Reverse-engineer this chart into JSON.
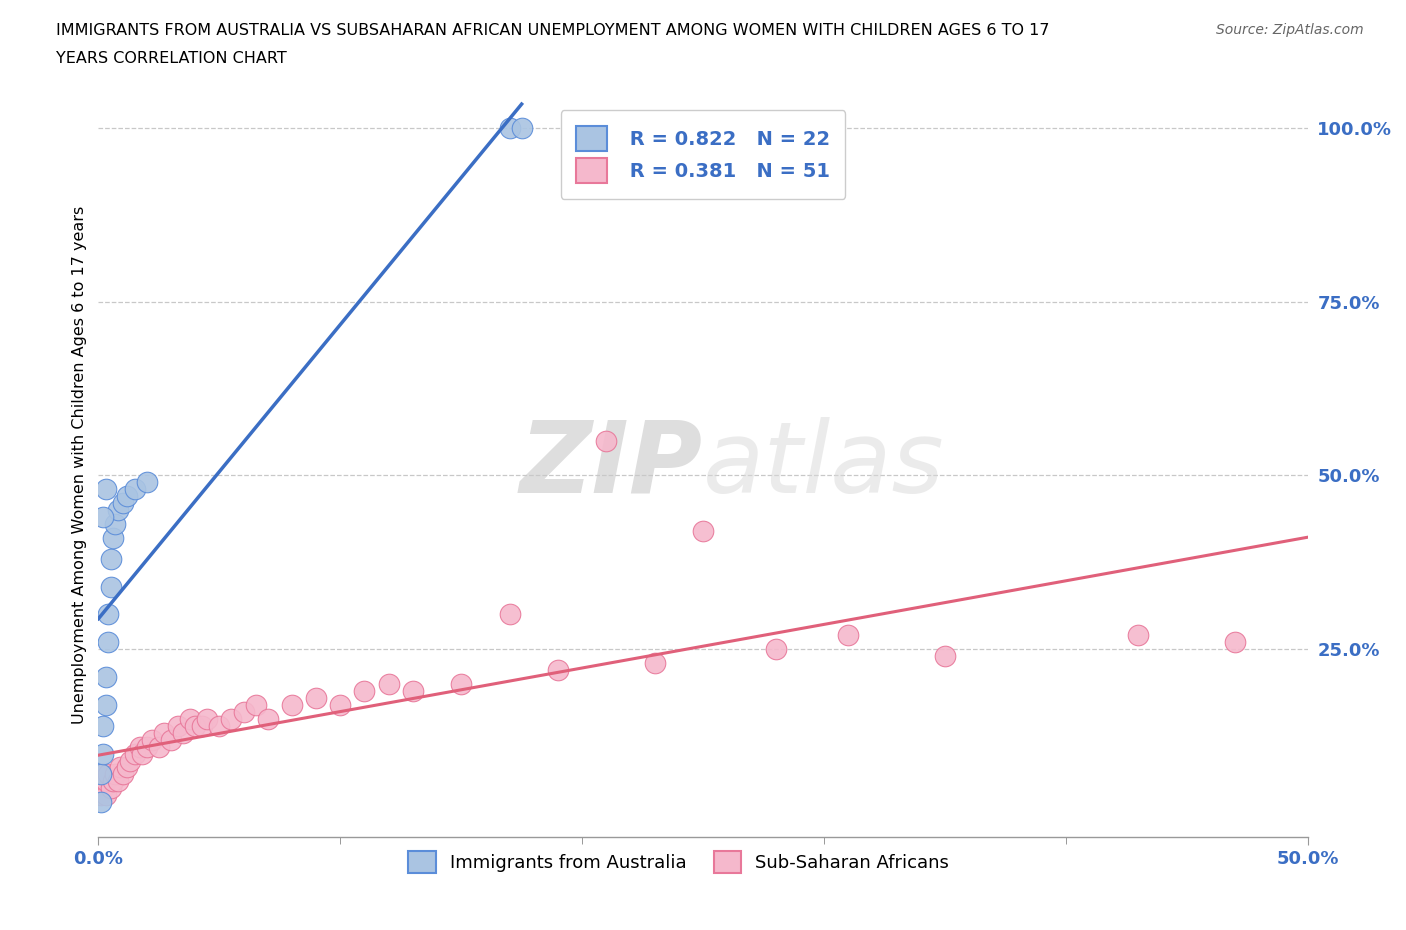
{
  "title_line1": "IMMIGRANTS FROM AUSTRALIA VS SUBSAHARAN AFRICAN UNEMPLOYMENT AMONG WOMEN WITH CHILDREN AGES 6 TO 17",
  "title_line2": "YEARS CORRELATION CHART",
  "source": "Source: ZipAtlas.com",
  "ylabel": "Unemployment Among Women with Children Ages 6 to 17 years",
  "xlim": [
    0,
    0.5
  ],
  "ylim": [
    -0.02,
    1.05
  ],
  "yticks": [
    0.25,
    0.5,
    0.75,
    1.0
  ],
  "ytick_labels": [
    "25.0%",
    "50.0%",
    "75.0%",
    "100.0%"
  ],
  "australia_color": "#aac4e2",
  "australia_edge_color": "#5b8dd9",
  "australia_line_color": "#3b6ec4",
  "subsaharan_color": "#f5b8cc",
  "subsaharan_edge_color": "#e8789a",
  "subsaharan_line_color": "#e0607a",
  "watermark_color": "#d8d8d8",
  "aus_scatter_x": [
    0.001,
    0.001,
    0.002,
    0.002,
    0.003,
    0.003,
    0.004,
    0.004,
    0.005,
    0.005,
    0.006,
    0.007,
    0.008,
    0.01,
    0.012,
    0.015,
    0.02,
    0.002,
    0.003,
    0.17,
    0.175
  ],
  "aus_scatter_y": [
    0.03,
    0.07,
    0.1,
    0.14,
    0.17,
    0.21,
    0.26,
    0.3,
    0.34,
    0.38,
    0.41,
    0.43,
    0.45,
    0.46,
    0.47,
    0.48,
    0.49,
    0.44,
    0.48,
    1.0,
    1.0
  ],
  "sub_scatter_x": [
    0.001,
    0.001,
    0.002,
    0.002,
    0.003,
    0.003,
    0.004,
    0.005,
    0.006,
    0.007,
    0.008,
    0.009,
    0.01,
    0.012,
    0.013,
    0.015,
    0.017,
    0.018,
    0.02,
    0.022,
    0.025,
    0.027,
    0.03,
    0.033,
    0.035,
    0.038,
    0.04,
    0.043,
    0.045,
    0.05,
    0.055,
    0.06,
    0.065,
    0.07,
    0.08,
    0.09,
    0.1,
    0.11,
    0.12,
    0.13,
    0.15,
    0.17,
    0.19,
    0.21,
    0.23,
    0.25,
    0.28,
    0.31,
    0.35,
    0.43,
    0.47
  ],
  "sub_scatter_y": [
    0.04,
    0.06,
    0.05,
    0.07,
    0.04,
    0.06,
    0.07,
    0.05,
    0.06,
    0.07,
    0.06,
    0.08,
    0.07,
    0.08,
    0.09,
    0.1,
    0.11,
    0.1,
    0.11,
    0.12,
    0.11,
    0.13,
    0.12,
    0.14,
    0.13,
    0.15,
    0.14,
    0.14,
    0.15,
    0.14,
    0.15,
    0.16,
    0.17,
    0.15,
    0.17,
    0.18,
    0.17,
    0.19,
    0.2,
    0.19,
    0.2,
    0.3,
    0.22,
    0.55,
    0.23,
    0.42,
    0.25,
    0.27,
    0.24,
    0.27,
    0.26
  ],
  "aus_line_x": [
    0.0,
    0.175
  ],
  "sub_line_x": [
    0.0,
    0.5
  ]
}
